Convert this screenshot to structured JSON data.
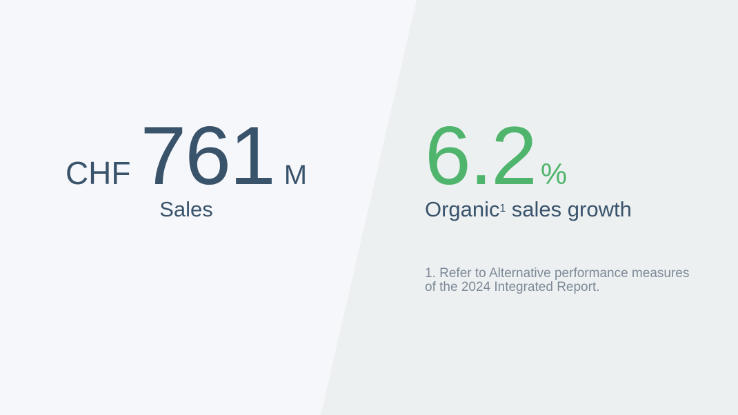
{
  "left_panel": {
    "currency": "CHF",
    "value": "761",
    "unit": "M",
    "label": "Sales"
  },
  "right_panel": {
    "value": "6.2",
    "unit": "%",
    "label_prefix": "Organic",
    "label_superscript": "1",
    "label_suffix": " sales growth",
    "footnote_line1": "1. Refer to Alternative performance measures",
    "footnote_line2": "of the 2024 Integrated Report."
  },
  "colors": {
    "left_background": "#f6f7fa",
    "right_background": "#edf0f1",
    "primary_text": "#39536b",
    "accent_green": "#4fb56c",
    "footnote_text": "#7d8997"
  }
}
